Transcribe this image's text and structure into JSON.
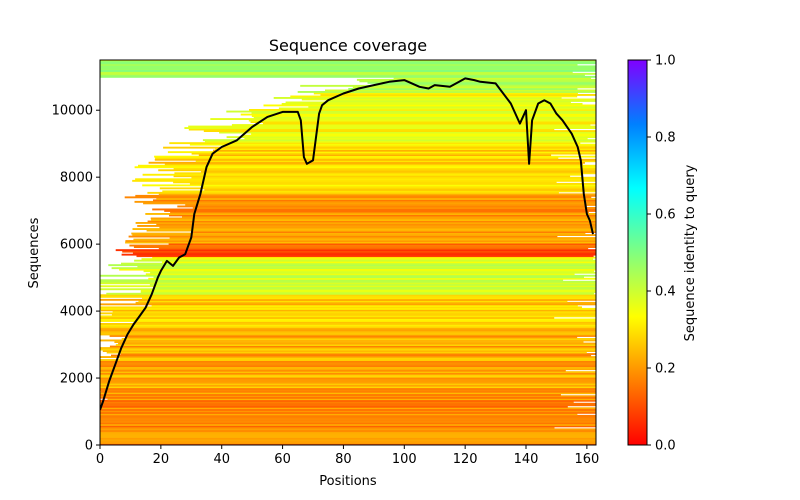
{
  "chart_data": {
    "type": "heatmap",
    "title": "Sequence coverage",
    "xlabel": "Positions",
    "ylabel": "Sequences",
    "xlim": [
      0,
      163
    ],
    "ylim": [
      0,
      11500
    ],
    "x_ticks": [
      0,
      20,
      40,
      60,
      80,
      100,
      120,
      140,
      160
    ],
    "y_ticks": [
      0,
      2000,
      4000,
      6000,
      8000,
      10000
    ],
    "grid": false,
    "colorbar": {
      "label": "Sequence identity to query",
      "range": [
        0.0,
        1.0
      ],
      "ticks": [
        "0.0",
        "0.2",
        "0.4",
        "0.6",
        "0.8",
        "1.0"
      ],
      "colors": [
        "#ff0000",
        "#ff8000",
        "#ffff00",
        "#80ff80",
        "#00ffff",
        "#0080ff",
        "#8000ff"
      ]
    },
    "heatmap_bands": [
      {
        "y_from": 0,
        "y_to": 1500,
        "identity": 0.18
      },
      {
        "y_from": 1500,
        "y_to": 3500,
        "identity": 0.22
      },
      {
        "y_from": 3500,
        "y_to": 4500,
        "identity": 0.27
      },
      {
        "y_from": 4500,
        "y_to": 5600,
        "identity": 0.38
      },
      {
        "y_from": 5600,
        "y_to": 6000,
        "identity": 0.12
      },
      {
        "y_from": 6000,
        "y_to": 7500,
        "identity": 0.2
      },
      {
        "y_from": 7500,
        "y_to": 9000,
        "identity": 0.28
      },
      {
        "y_from": 9000,
        "y_to": 10500,
        "identity": 0.34
      },
      {
        "y_from": 10500,
        "y_to": 11500,
        "identity": 0.45
      }
    ],
    "coverage_series": {
      "name": "Coverage",
      "color": "#000000",
      "x": [
        0,
        1,
        3,
        5,
        7,
        9,
        11,
        13,
        15,
        17,
        19,
        20,
        22,
        24,
        26,
        28,
        30,
        31,
        33,
        35,
        37,
        40,
        45,
        50,
        55,
        60,
        65,
        66,
        67,
        68,
        70,
        72,
        73,
        75,
        80,
        85,
        90,
        95,
        100,
        105,
        108,
        110,
        115,
        118,
        120,
        123,
        125,
        130,
        135,
        138,
        140,
        141,
        142,
        144,
        146,
        148,
        150,
        152,
        155,
        157,
        158,
        159,
        160,
        161,
        162
      ],
      "y": [
        1050,
        1300,
        1900,
        2400,
        2900,
        3300,
        3600,
        3850,
        4100,
        4500,
        5000,
        5200,
        5500,
        5350,
        5600,
        5700,
        6200,
        6900,
        7500,
        8300,
        8700,
        8900,
        9100,
        9500,
        9800,
        9950,
        9950,
        9700,
        8600,
        8400,
        8500,
        9900,
        10150,
        10300,
        10500,
        10650,
        10750,
        10850,
        10900,
        10700,
        10650,
        10750,
        10700,
        10850,
        10950,
        10900,
        10850,
        10800,
        10200,
        9600,
        10000,
        8400,
        9700,
        10200,
        10300,
        10200,
        9900,
        9700,
        9300,
        8900,
        8500,
        7500,
        6900,
        6700,
        6300
      ]
    }
  }
}
